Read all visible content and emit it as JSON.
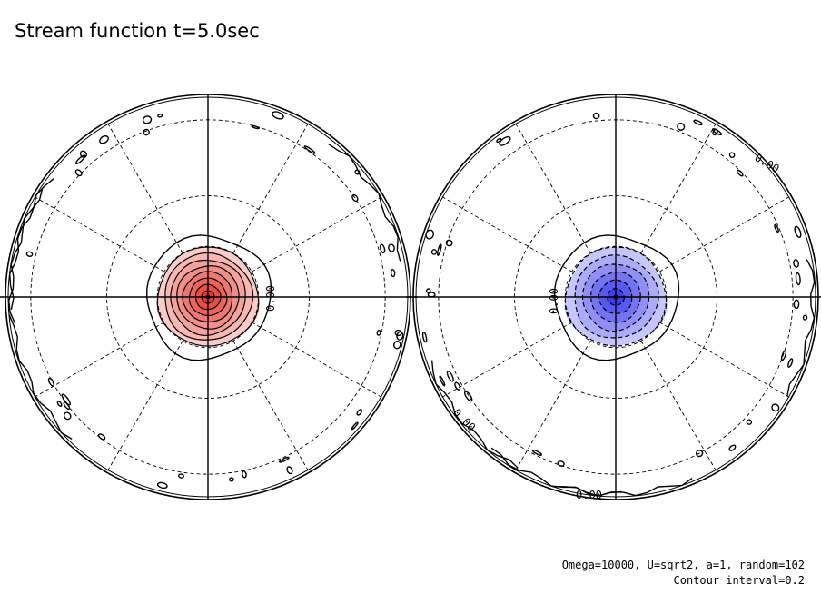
{
  "title": "Stream function t=5.0sec",
  "footnote": {
    "params": "Omega=10000, U=sqrt2, a=1, random=102",
    "contour_interval": "Contour interval=0.2"
  },
  "colors": {
    "positive": "#e8382e",
    "negative": "#3c3cf0",
    "line": "#000000"
  },
  "panels": [
    {
      "name": "left-hemisphere",
      "polarity": "positive",
      "zero_label": "0.00",
      "contour_levels": [
        0.2,
        0.4,
        0.6,
        0.8,
        1.0,
        1.2,
        1.4,
        1.6
      ]
    },
    {
      "name": "right-hemisphere",
      "polarity": "negative",
      "zero_label": "0.00",
      "zero_labels_edge": [
        "0.00",
        "0.00",
        "0.00"
      ],
      "contour_levels": [
        -0.2,
        -0.4,
        -0.6,
        -0.8,
        -1.0,
        -1.2
      ]
    }
  ]
}
